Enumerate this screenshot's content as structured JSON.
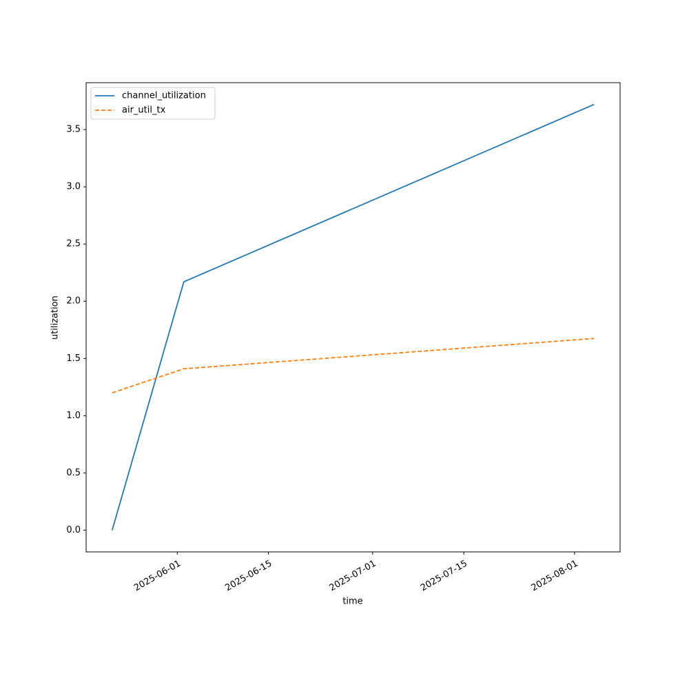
{
  "chart_data": {
    "type": "line",
    "x_label": "time",
    "y_label": "utilization",
    "x": [
      "2025-05-22",
      "2025-06-02",
      "2025-08-04"
    ],
    "series": [
      {
        "name": "channel_utilization",
        "color": "#1f77b4",
        "linestyle": "solid",
        "values": [
          0,
          2.17,
          3.72
        ]
      },
      {
        "name": "air_util_tx",
        "color": "#ff7f0e",
        "linestyle": "dashed",
        "values": [
          1.2,
          1.41,
          1.675
        ]
      }
    ],
    "xlim": [
      "2025-05-18",
      "2025-08-08"
    ],
    "xticks": [
      "2025-06-01",
      "2025-06-15",
      "2025-07-01",
      "2025-07-15",
      "2025-08-01"
    ],
    "ylim": [
      -0.19,
      3.91
    ],
    "yticks": [
      {
        "value": 0,
        "label": "0.0"
      },
      0.5,
      {
        "value": 1,
        "label": "1.0"
      },
      1.5,
      {
        "value": 2,
        "label": "2.0"
      },
      2.5,
      {
        "value": 3,
        "label": "3.0"
      },
      3.5
    ],
    "legend": "upper-left",
    "grid": false
  }
}
